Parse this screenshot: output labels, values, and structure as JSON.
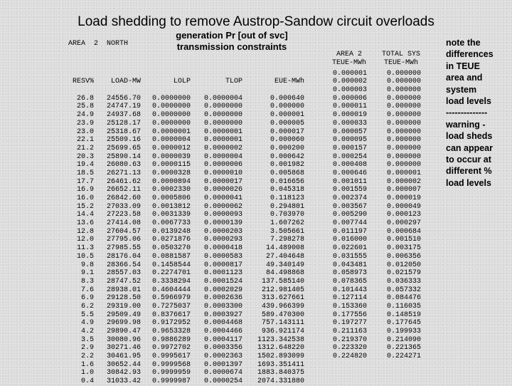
{
  "title": "Load shedding to remove Austrop-Sandow circuit overloads",
  "gen_header": [
    "generation Pr [out of svc]",
    "transmission constraints"
  ],
  "area_label": "AREA  2  NORTH",
  "columns": {
    "resv": {
      "header": "RESV%",
      "values": [
        "26.8",
        "25.8",
        "24.9",
        "23.9",
        "23.0",
        "22.1",
        "21.2",
        "20.3",
        "19.4",
        "18.5",
        "17.7",
        "16.9",
        "16.0",
        "15.2",
        "14.4",
        "13.6",
        "12.8",
        "12.0",
        "11.3",
        "10.5",
        "9.8",
        "9.1",
        "8.3",
        "7.6",
        "6.9",
        "6.2",
        "5.5",
        "4.9",
        "4.2",
        "3.5",
        "2.9",
        "2.2",
        "1.6",
        "1.0",
        "0.4"
      ]
    },
    "load": {
      "header": "LOAD-MW",
      "values": [
        "24556.70",
        "24747.19",
        "24937.68",
        "25128.17",
        "25318.67",
        "25509.16",
        "25699.65",
        "25890.14",
        "26080.63",
        "26271.13",
        "26461.62",
        "26652.11",
        "26842.60",
        "27033.09",
        "27223.58",
        "27414.08",
        "27604.57",
        "27795.06",
        "27985.55",
        "28176.04",
        "28366.54",
        "28557.03",
        "28747.52",
        "28938.01",
        "29128.50",
        "29319.00",
        "29509.49",
        "29699.98",
        "29890.47",
        "30080.96",
        "30271.46",
        "30461.95",
        "30652.44",
        "30842.93",
        "31033.42"
      ]
    },
    "lolp": {
      "header": "LOLP",
      "values": [
        "0.0000000",
        "0.0000000",
        "0.0000000",
        "0.0000000",
        "0.0000001",
        "0.0000004",
        "0.0000012",
        "0.0000039",
        "0.0000115",
        "0.0000328",
        "0.0000894",
        "0.0002330",
        "0.0005806",
        "0.0013812",
        "0.0031339",
        "0.0067733",
        "0.0139248",
        "0.0271876",
        "0.0503270",
        "0.0881587",
        "0.1458544",
        "0.2274701",
        "0.3338294",
        "0.4604444",
        "0.5966979",
        "0.7275037",
        "0.8376617",
        "0.9172952",
        "0.9653328",
        "0.9886289",
        "0.9972702",
        "0.9995617",
        "0.9999568",
        "0.9999959",
        "0.9999987"
      ]
    },
    "tlop": {
      "header": "TLOP",
      "values": [
        "0.0000004",
        "0.0000000",
        "0.0000000",
        "0.0000000",
        "0.0000001",
        "0.0000001",
        "0.0000002",
        "0.0000004",
        "0.0000006",
        "0.0000010",
        "0.0000017",
        "0.0000026",
        "0.0000041",
        "0.0000062",
        "0.0000093",
        "0.0000139",
        "0.0000203",
        "0.0000293",
        "0.0000418",
        "0.0000583",
        "0.0000817",
        "0.0001123",
        "0.0001524",
        "0.0002029",
        "0.0002636",
        "0.0003300",
        "0.0003927",
        "0.0004468",
        "0.0004466",
        "0.0004117",
        "0.0003356",
        "0.0002363",
        "0.0001397",
        "0.0000674",
        "0.0000254"
      ]
    },
    "eue": {
      "header": "EUE-MWh",
      "values": [
        "0.000640",
        "0.000000",
        "0.000001",
        "0.000005",
        "0.000017",
        "0.000060",
        "0.000200",
        "0.000642",
        "0.001982",
        "0.005868",
        "0.016656",
        "0.045318",
        "0.118123",
        "0.294801",
        "0.703970",
        "1.607262",
        "3.505661",
        "7.298278",
        "14.489008",
        "27.404648",
        "49.340149",
        "84.498868",
        "137.585140",
        "212.981405",
        "313.627661",
        "439.966399",
        "589.470300",
        "757.143111",
        "936.921174",
        "1123.342538",
        "1312.648220",
        "1502.893099",
        "1693.351411",
        "1883.840375",
        "2074.331880"
      ]
    },
    "teue": {
      "header": [
        "AREA 2",
        "TEUE-MWh"
      ],
      "values": [
        "0.000001",
        "0.000002",
        "0.000003",
        "0.000006",
        "0.000011",
        "0.000019",
        "0.000033",
        "0.000057",
        "0.000095",
        "0.000157",
        "0.000254",
        "0.000408",
        "0.000646",
        "0.001011",
        "0.001559",
        "0.002374",
        "0.003567",
        "0.005290",
        "0.007744",
        "0.011197",
        "0.016000",
        "0.022601",
        "0.031555",
        "0.043481",
        "0.058973",
        "0.078365",
        "0.101443",
        "0.127114",
        "0.153360",
        "0.177556",
        "0.197277",
        "0.211163",
        "0.219370",
        "0.223320",
        "0.224820"
      ]
    },
    "sys": {
      "header": [
        "TOTAL SYS",
        "TEUE-MWh"
      ],
      "values": [
        "0.000000",
        "0.000000",
        "0.000000",
        "0.000000",
        "0.000000",
        "0.000000",
        "0.000000",
        "0.000000",
        "0.000000",
        "0.000000",
        "0.000000",
        "0.000000",
        "0.000001",
        "0.000002",
        "0.000007",
        "0.000019",
        "0.000049",
        "0.000123",
        "0.000297",
        "0.000684",
        "0.001510",
        "0.003175",
        "0.006356",
        "0.012050",
        "0.021579",
        "0.036333",
        "0.057332",
        "0.084476",
        "0.116035",
        "0.148519",
        "0.177645",
        "0.199933",
        "0.214090",
        "0.221365",
        "0.224271"
      ]
    }
  },
  "notes": [
    "note the",
    "differences",
    "in TEUE",
    "area and",
    "system",
    "load levels",
    "--------------",
    "warning -",
    "load sheds",
    "can appear",
    "to occur at",
    "different %",
    "load levels"
  ]
}
